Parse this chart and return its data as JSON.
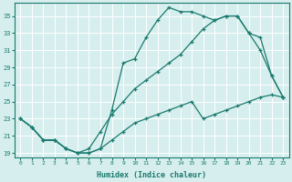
{
  "xlabel": "Humidex (Indice chaleur)",
  "line_color": "#1a7a6e",
  "bg_color": "#d6eeee",
  "grid_color": "#ffffff",
  "xlim": [
    -0.5,
    23.5
  ],
  "ylim": [
    18.5,
    36.5
  ],
  "yticks": [
    19,
    21,
    23,
    25,
    27,
    29,
    31,
    33,
    35
  ],
  "xticks": [
    0,
    1,
    2,
    3,
    4,
    5,
    6,
    7,
    8,
    9,
    10,
    11,
    12,
    13,
    14,
    15,
    16,
    17,
    18,
    19,
    20,
    21,
    22,
    23
  ],
  "line1_x": [
    0,
    1,
    2,
    3,
    4,
    5,
    6,
    7,
    8,
    9,
    10,
    11,
    12,
    13,
    14,
    15,
    16,
    17,
    18,
    19,
    20,
    21,
    22,
    23
  ],
  "line1_y": [
    23.0,
    22.0,
    20.5,
    20.5,
    19.5,
    19.0,
    19.0,
    19.5,
    24.0,
    29.5,
    30.0,
    32.5,
    34.5,
    36.0,
    35.5,
    35.5,
    35.0,
    34.5,
    35.0,
    35.0,
    33.0,
    31.0,
    28.0,
    25.5
  ],
  "line2_x": [
    0,
    1,
    2,
    3,
    4,
    5,
    6,
    7,
    8,
    9,
    10,
    11,
    12,
    13,
    14,
    15,
    16,
    17,
    18,
    19,
    20,
    21,
    22,
    23
  ],
  "line2_y": [
    23.0,
    22.0,
    20.5,
    20.5,
    19.5,
    19.0,
    19.5,
    21.5,
    23.5,
    25.0,
    26.5,
    27.5,
    28.5,
    29.5,
    30.5,
    32.0,
    33.5,
    34.5,
    35.0,
    35.0,
    33.0,
    32.5,
    28.0,
    25.5
  ],
  "line3_x": [
    0,
    1,
    2,
    3,
    4,
    5,
    6,
    7,
    8,
    9,
    10,
    11,
    12,
    13,
    14,
    15,
    16,
    17,
    18,
    19,
    20,
    21,
    22,
    23
  ],
  "line3_y": [
    23.0,
    22.0,
    20.5,
    20.5,
    19.5,
    19.0,
    19.0,
    19.5,
    20.5,
    21.5,
    22.5,
    23.0,
    23.5,
    24.0,
    24.5,
    25.0,
    23.0,
    23.5,
    24.0,
    24.5,
    25.0,
    25.5,
    25.8,
    25.5
  ]
}
